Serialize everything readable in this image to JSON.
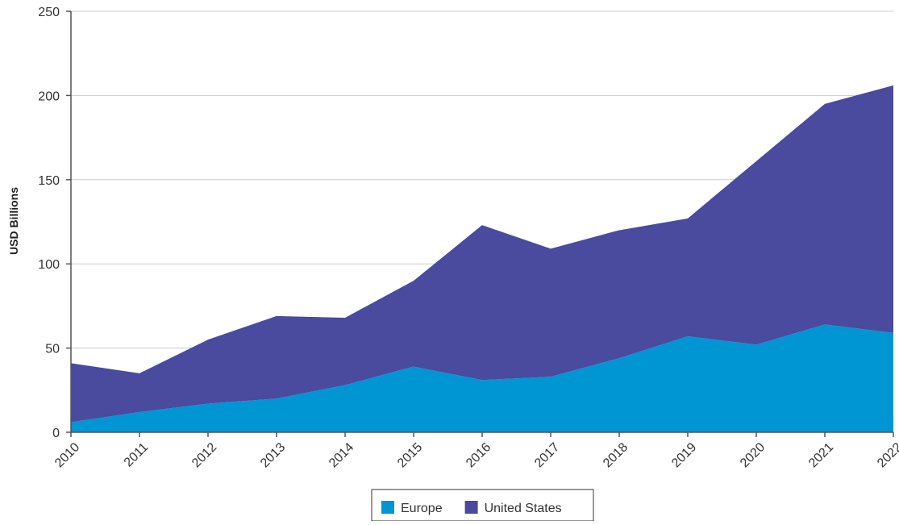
{
  "chart_data": {
    "type": "area",
    "stacked": true,
    "x": [
      "2010",
      "2011",
      "2012",
      "2013",
      "2014",
      "2015",
      "2016",
      "2017",
      "2018",
      "2019",
      "2020",
      "2021",
      "2022"
    ],
    "series": [
      {
        "name": "Europe",
        "color": "#0095d3",
        "values": [
          6,
          12,
          17,
          20,
          28,
          39,
          31,
          33,
          44,
          57,
          52,
          64,
          59
        ]
      },
      {
        "name": "United States",
        "color": "#4a4a9e",
        "values": [
          35,
          23,
          38,
          49,
          40,
          51,
          92,
          76,
          76,
          70,
          109,
          131,
          147
        ]
      }
    ],
    "title": "",
    "xlabel": "",
    "ylabel": "USD Billions",
    "ylim": [
      0,
      250
    ],
    "yticks": [
      0,
      50,
      100,
      150,
      200,
      250
    ],
    "grid": true,
    "legend_position": "bottom-center"
  }
}
